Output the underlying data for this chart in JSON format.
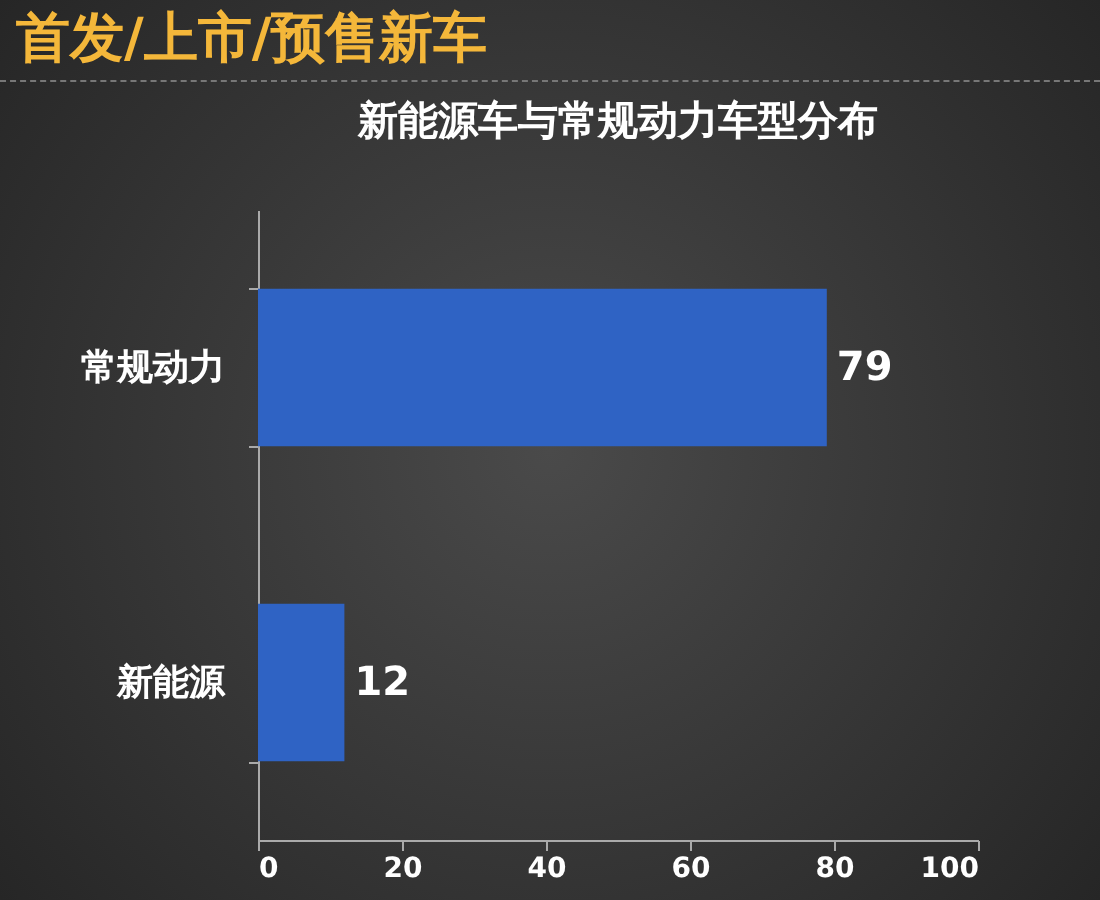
{
  "chart_data": {
    "type": "bar",
    "orientation": "horizontal",
    "title": "首发/上市/预售新车",
    "subtitle": "新能源车与常规动力车型分布",
    "categories": [
      "常规动力",
      "新能源"
    ],
    "values": [
      79,
      12
    ],
    "color": "#2f63c4",
    "xlim": [
      0,
      100
    ],
    "xticks": [
      0,
      20,
      40,
      60,
      80,
      100
    ],
    "grid": false,
    "data_labels": true
  }
}
